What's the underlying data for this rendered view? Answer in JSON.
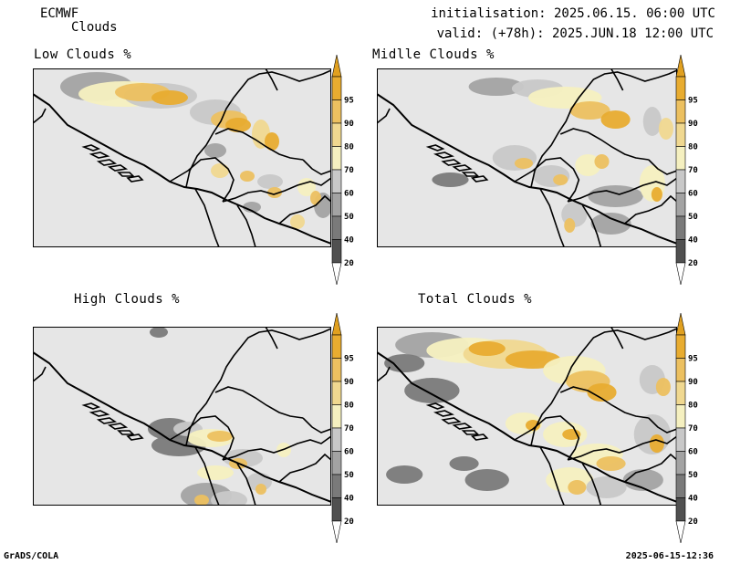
{
  "header": {
    "model": "ECMWF",
    "product": "Clouds",
    "init": "initialisation: 2025.06.15. 06:00 UTC",
    "valid": "valid: (+78h): 2025.JUN.18 12:00 UTC"
  },
  "panels": [
    {
      "id": "low",
      "title": "Low Clouds %"
    },
    {
      "id": "mid",
      "title": "Midlle Clouds %"
    },
    {
      "id": "high",
      "title": "High Clouds %"
    },
    {
      "id": "total",
      "title": "Total Clouds %"
    }
  ],
  "colorbar": {
    "levels": [
      "20",
      "40",
      "50",
      "60",
      "70",
      "80",
      "90",
      "95"
    ],
    "colors": [
      "#505050",
      "#7a7a7a",
      "#a3a3a3",
      "#c8c8c8",
      "#f5f0c0",
      "#f0d890",
      "#ecc060",
      "#e8ac30",
      "#e0a020"
    ],
    "under_color": "#ffffff"
  },
  "colors": {
    "map_background": "#e6e6e6",
    "coast": "#000000"
  },
  "footer": {
    "left": "GrADS/COLA",
    "right": "2025-06-15-12:36"
  }
}
